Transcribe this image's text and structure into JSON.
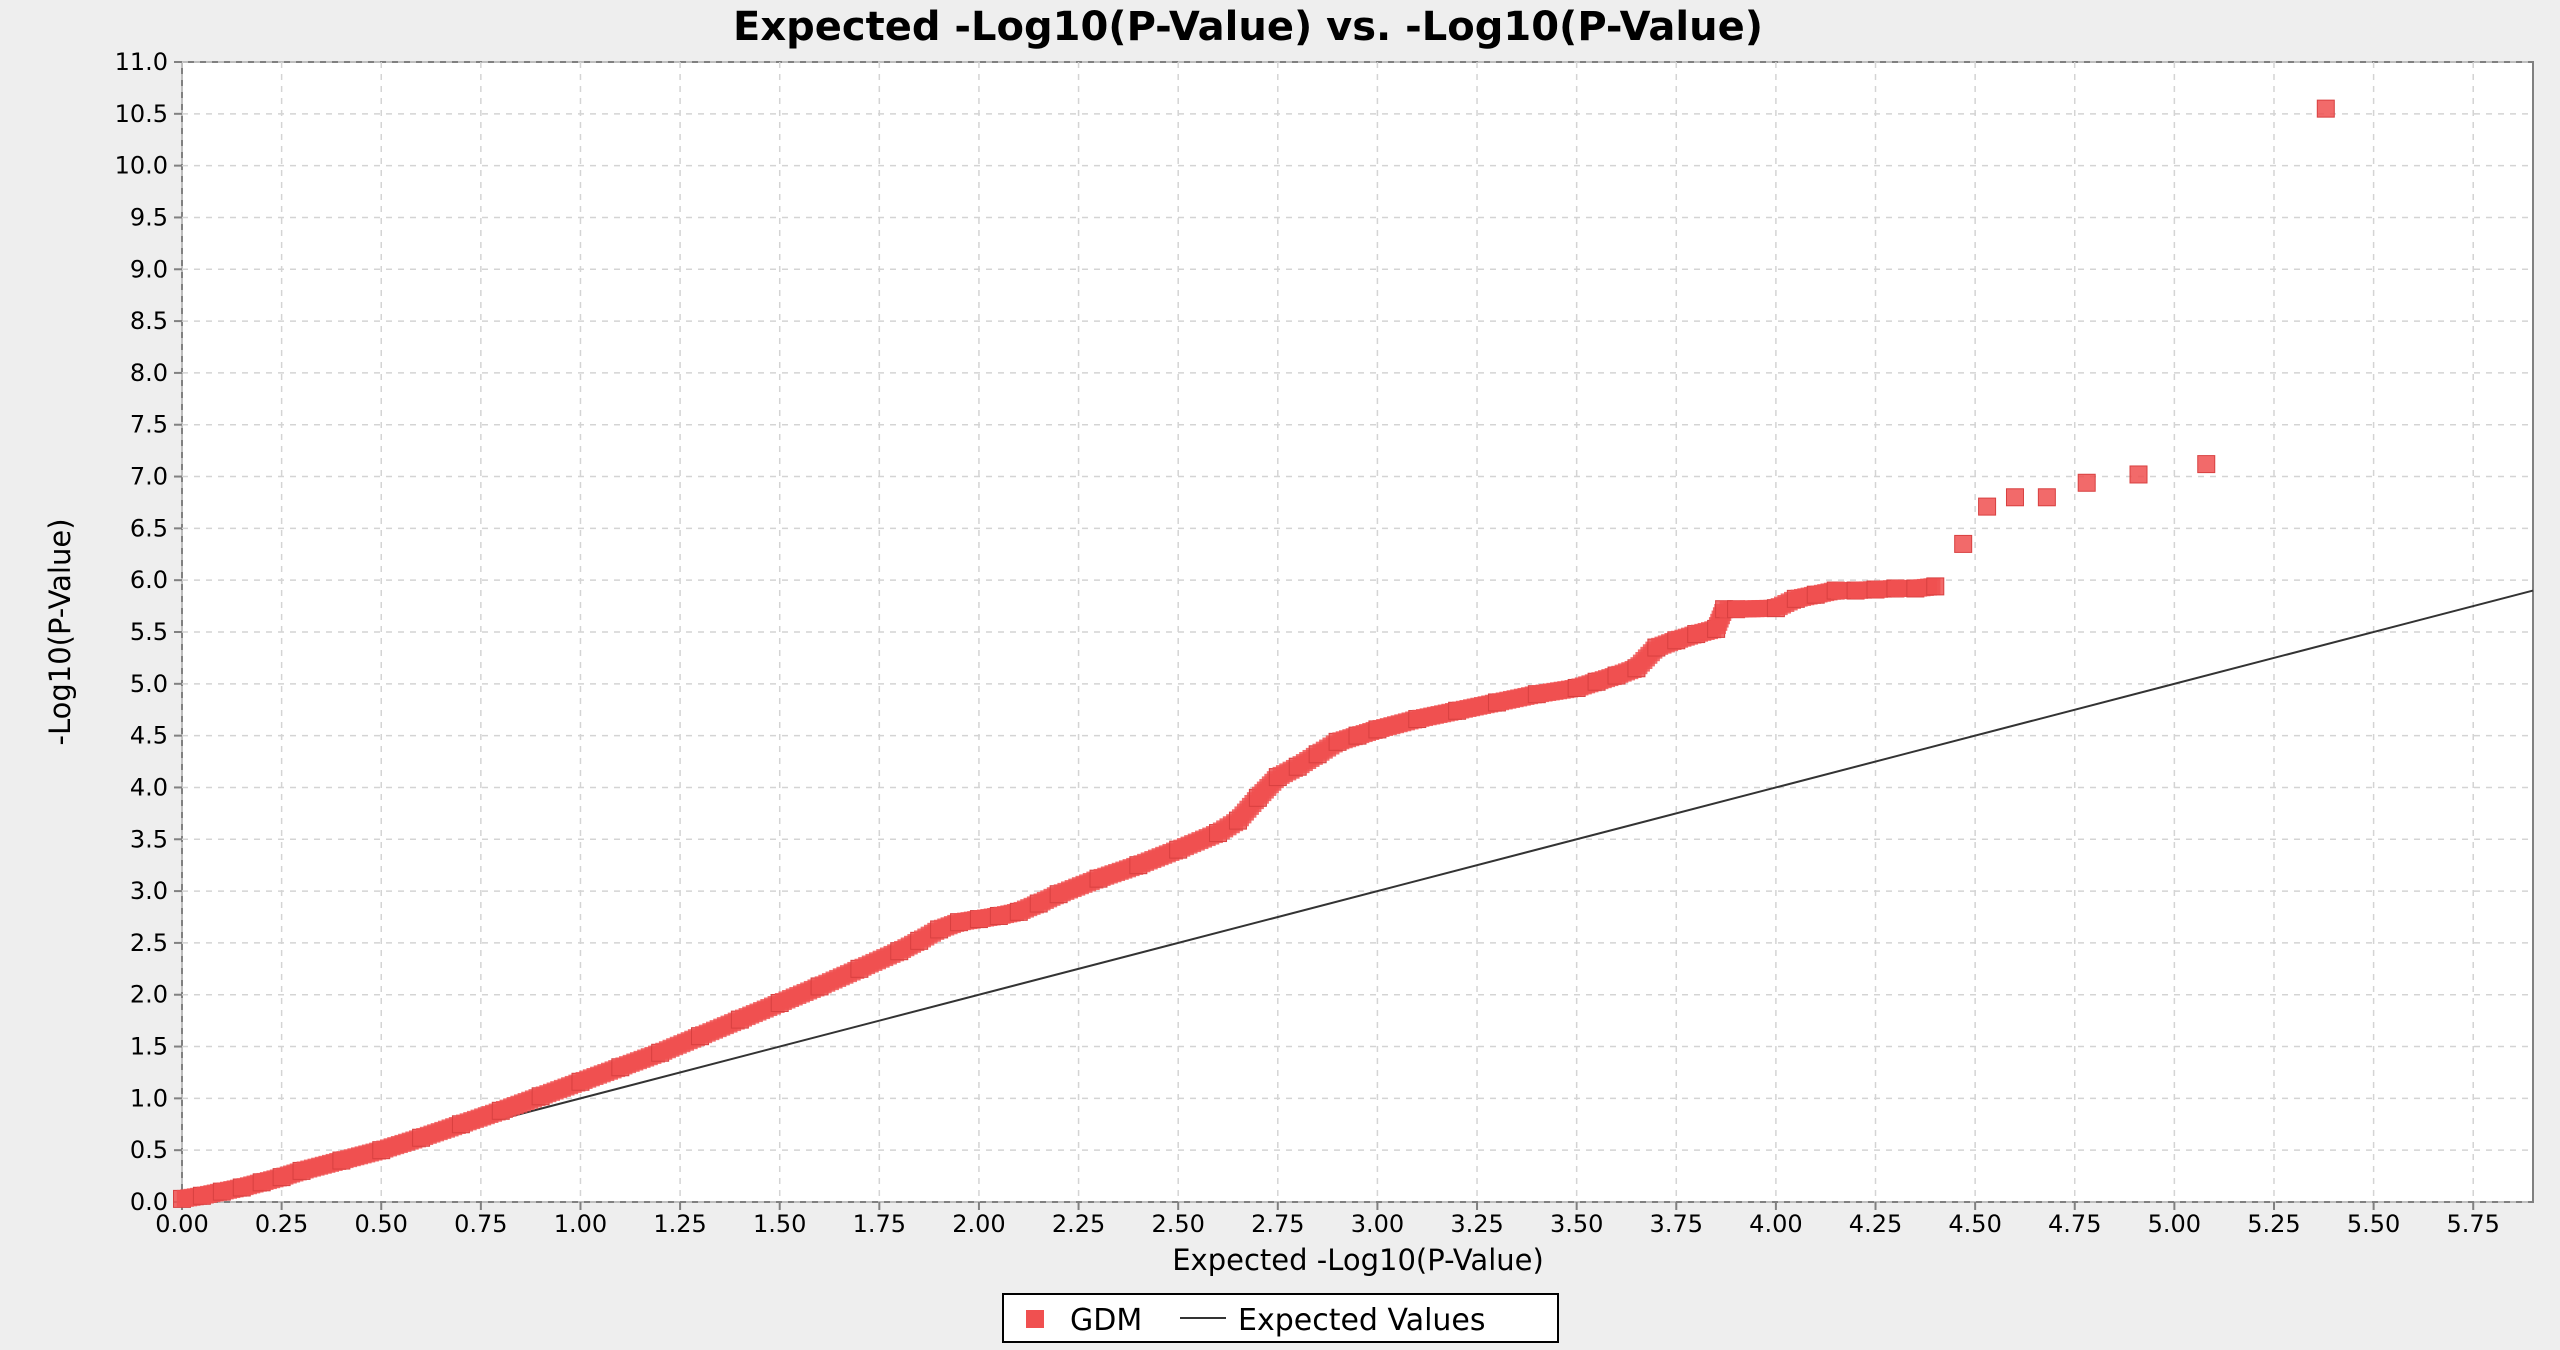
{
  "chart_data": {
    "type": "scatter",
    "title": "Expected -Log10(P-Value) vs. -Log10(P-Value)",
    "xlabel": "Expected -Log10(P-Value)",
    "ylabel": "-Log10(P-Value)",
    "xlim": [
      0,
      5.9
    ],
    "ylim": [
      0,
      11.0
    ],
    "x_ticks": [
      "0.00",
      "0.25",
      "0.50",
      "0.75",
      "1.00",
      "1.25",
      "1.50",
      "1.75",
      "2.00",
      "2.25",
      "2.50",
      "2.75",
      "3.00",
      "3.25",
      "3.50",
      "3.75",
      "4.00",
      "4.25",
      "4.50",
      "4.75",
      "5.00",
      "5.25",
      "5.50",
      "5.75"
    ],
    "y_ticks": [
      "0.0",
      "0.5",
      "1.0",
      "1.5",
      "2.0",
      "2.5",
      "3.0",
      "3.5",
      "4.0",
      "4.5",
      "5.0",
      "5.5",
      "6.0",
      "6.5",
      "7.0",
      "7.5",
      "8.0",
      "8.5",
      "9.0",
      "9.5",
      "10.0",
      "10.5",
      "11.0"
    ],
    "grid": true,
    "legend_position": "bottom",
    "series": [
      {
        "name": "GDM",
        "kind": "scatter",
        "color": "#f05050",
        "x": [
          0.0,
          0.05,
          0.1,
          0.15,
          0.2,
          0.25,
          0.3,
          0.4,
          0.5,
          0.6,
          0.7,
          0.8,
          0.9,
          1.0,
          1.1,
          1.2,
          1.3,
          1.4,
          1.5,
          1.6,
          1.7,
          1.8,
          1.85,
          1.9,
          1.95,
          2.0,
          2.05,
          2.1,
          2.15,
          2.2,
          2.3,
          2.4,
          2.5,
          2.6,
          2.65,
          2.7,
          2.75,
          2.8,
          2.85,
          2.9,
          2.95,
          3.0,
          3.1,
          3.2,
          3.3,
          3.4,
          3.5,
          3.55,
          3.6,
          3.65,
          3.7,
          3.75,
          3.8,
          3.85,
          3.87,
          3.9,
          4.0,
          4.05,
          4.1,
          4.15,
          4.2,
          4.25,
          4.3,
          4.35,
          4.4,
          4.47,
          4.53,
          4.6,
          4.68,
          4.78,
          4.91,
          5.08,
          5.38
        ],
        "y": [
          0.03,
          0.06,
          0.1,
          0.14,
          0.19,
          0.24,
          0.3,
          0.4,
          0.5,
          0.62,
          0.75,
          0.88,
          1.02,
          1.16,
          1.3,
          1.44,
          1.6,
          1.76,
          1.92,
          2.08,
          2.25,
          2.42,
          2.52,
          2.63,
          2.7,
          2.73,
          2.76,
          2.8,
          2.88,
          2.97,
          3.12,
          3.25,
          3.4,
          3.56,
          3.68,
          3.9,
          4.1,
          4.2,
          4.32,
          4.44,
          4.5,
          4.56,
          4.66,
          4.74,
          4.82,
          4.9,
          4.96,
          5.02,
          5.08,
          5.15,
          5.35,
          5.42,
          5.48,
          5.53,
          5.72,
          5.72,
          5.73,
          5.82,
          5.86,
          5.9,
          5.9,
          5.91,
          5.92,
          5.92,
          5.94,
          6.35,
          6.71,
          6.8,
          6.8,
          6.94,
          7.02,
          7.12,
          10.55
        ]
      },
      {
        "name": "Expected Values",
        "kind": "line",
        "color": "#333333",
        "x": [
          0,
          5.9
        ],
        "y": [
          0,
          5.9
        ]
      }
    ]
  }
}
